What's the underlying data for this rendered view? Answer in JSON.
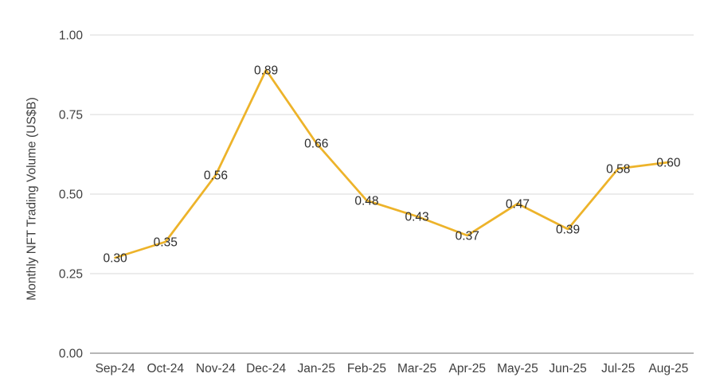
{
  "chart_data": {
    "type": "line",
    "title": "",
    "xlabel": "",
    "ylabel": "Monthly NFT Trading Volume (US$B)",
    "categories": [
      "Sep-24",
      "Oct-24",
      "Nov-24",
      "Dec-24",
      "Jan-25",
      "Feb-25",
      "Mar-25",
      "Apr-25",
      "May-25",
      "Jun-25",
      "Jul-25",
      "Aug-25"
    ],
    "values": [
      0.3,
      0.35,
      0.56,
      0.89,
      0.66,
      0.48,
      0.43,
      0.37,
      0.47,
      0.39,
      0.58,
      0.6
    ],
    "data_labels": [
      "0.30",
      "0.35",
      "0.56",
      "0.89",
      "0.66",
      "0.48",
      "0.43",
      "0.37",
      "0.47",
      "0.39",
      "0.58",
      "0.60"
    ],
    "y_ticks": [
      {
        "value": 0.0,
        "label": "0.00"
      },
      {
        "value": 0.25,
        "label": "0.25"
      },
      {
        "value": 0.5,
        "label": "0.50"
      },
      {
        "value": 0.75,
        "label": "0.75"
      },
      {
        "value": 1.0,
        "label": "1.00"
      }
    ],
    "ylim": [
      0,
      1.0
    ],
    "grid": "horizontal",
    "legend": "none",
    "line_color": "#EDB32A",
    "data_label_color": "#2d2d2d",
    "tick_label_color": "#3f3f3f",
    "axis_title_color": "#3f3f3f",
    "gridline_color": "#d9d9d9",
    "axis_line_color": "#9e9e9e",
    "background_color": "#ffffff"
  }
}
